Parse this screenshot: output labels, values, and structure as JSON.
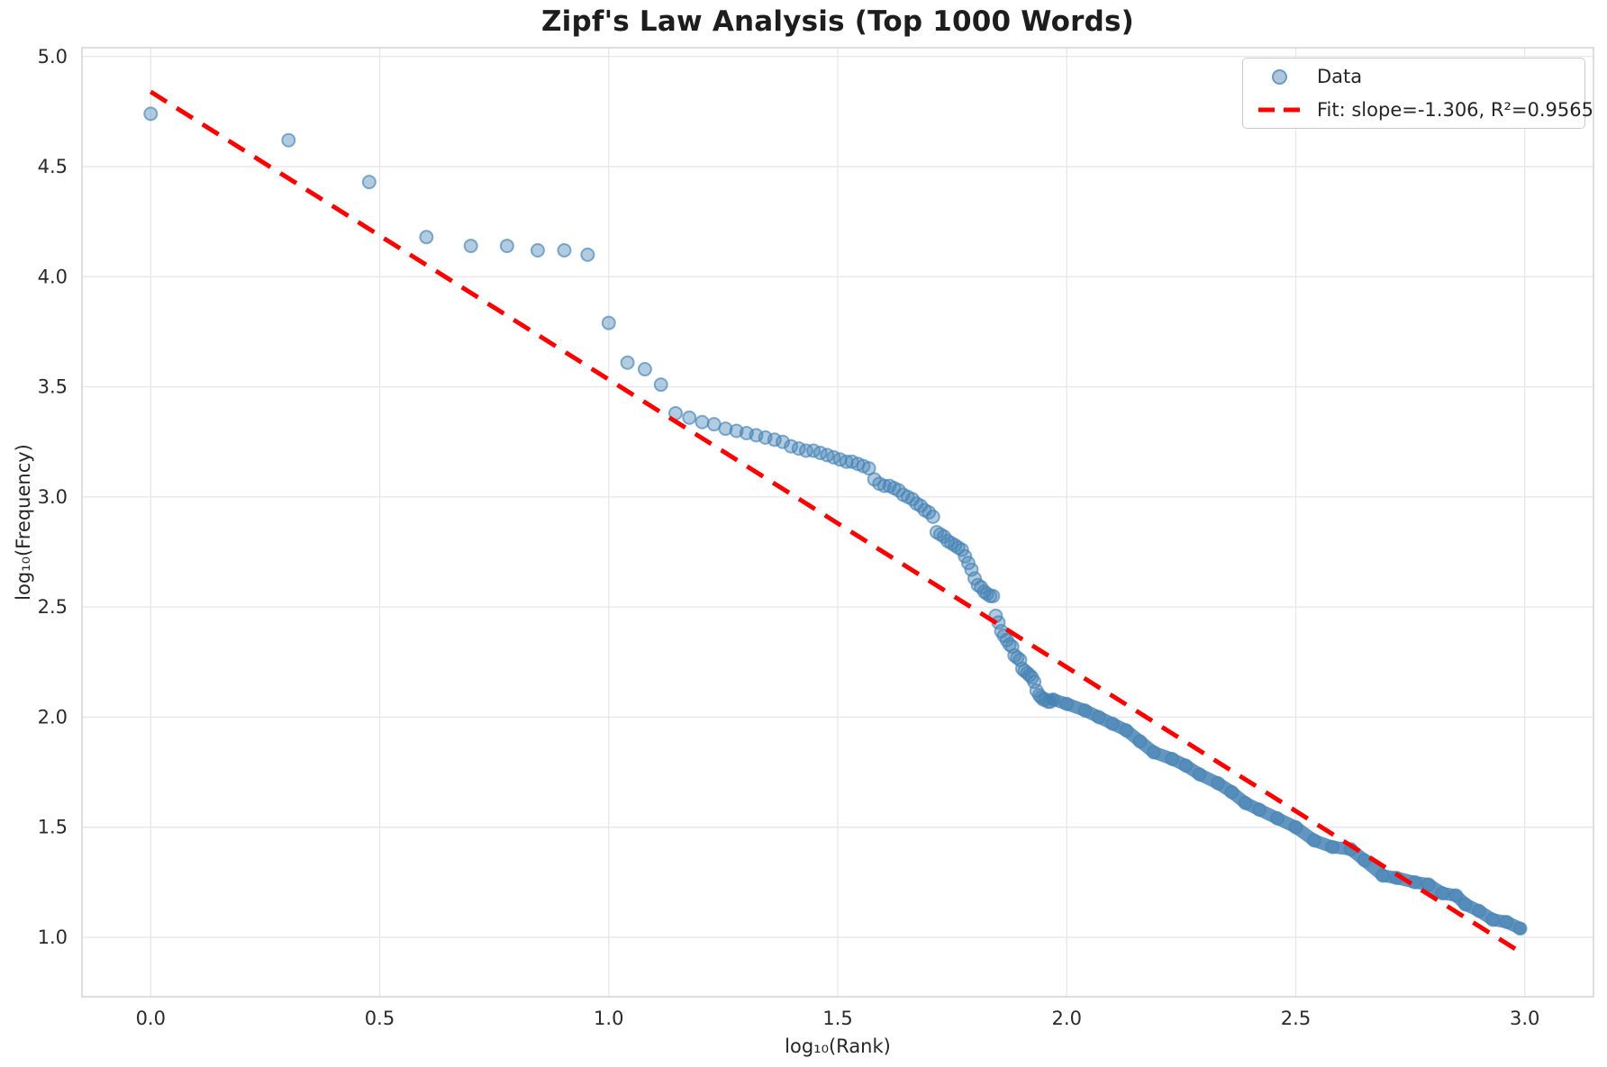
{
  "chart_data": {
    "type": "scatter",
    "title": "Zipf's Law Analysis (Top 1000 Words)",
    "xlabel": "log₁₀(Rank)",
    "ylabel": "log₁₀(Frequency)",
    "xlim": [
      -0.15,
      3.15
    ],
    "ylim": [
      0.73,
      5.04
    ],
    "xticks": [
      0.0,
      0.5,
      1.0,
      1.5,
      2.0,
      2.5,
      3.0
    ],
    "xtick_labels": [
      "0.0",
      "0.5",
      "1.0",
      "1.5",
      "2.0",
      "2.5",
      "3.0"
    ],
    "yticks": [
      1.0,
      1.5,
      2.0,
      2.5,
      3.0,
      3.5,
      4.0,
      4.5,
      5.0
    ],
    "ytick_labels": [
      "1.0",
      "1.5",
      "2.0",
      "2.5",
      "3.0",
      "3.5",
      "4.0",
      "4.5",
      "5.0"
    ],
    "grid": true,
    "background": "#ffffff",
    "grid_color": "#e7e7e7",
    "spine_color": "#cdcdcd",
    "text_color": "#2b2b2b",
    "legend_position": "upper right",
    "note": "Scatter of top 1000 ranked words; for log10(rank)>1.97 the points overlap into a dense band, recorded here as sampled band anchors.",
    "series": [
      {
        "name": "Data",
        "type": "scatter",
        "color": "#4682b4",
        "alpha": 0.5,
        "marker_radius_px": 7,
        "points": [
          [
            0.0,
            4.74
          ],
          [
            0.301,
            4.62
          ],
          [
            0.477,
            4.43
          ],
          [
            0.602,
            4.18
          ],
          [
            0.699,
            4.14
          ],
          [
            0.778,
            4.14
          ],
          [
            0.845,
            4.12
          ],
          [
            0.903,
            4.12
          ],
          [
            0.954,
            4.1
          ],
          [
            1.0,
            3.79
          ],
          [
            1.041,
            3.61
          ],
          [
            1.079,
            3.58
          ],
          [
            1.114,
            3.51
          ],
          [
            1.146,
            3.38
          ],
          [
            1.176,
            3.36
          ],
          [
            1.204,
            3.34
          ],
          [
            1.23,
            3.33
          ],
          [
            1.255,
            3.31
          ],
          [
            1.279,
            3.3
          ],
          [
            1.301,
            3.29
          ],
          [
            1.322,
            3.28
          ],
          [
            1.342,
            3.27
          ],
          [
            1.362,
            3.26
          ],
          [
            1.38,
            3.25
          ],
          [
            1.398,
            3.23
          ],
          [
            1.415,
            3.22
          ],
          [
            1.431,
            3.21
          ],
          [
            1.447,
            3.21
          ],
          [
            1.462,
            3.2
          ],
          [
            1.477,
            3.19
          ],
          [
            1.491,
            3.18
          ],
          [
            1.505,
            3.17
          ],
          [
            1.519,
            3.16
          ],
          [
            1.531,
            3.16
          ],
          [
            1.544,
            3.15
          ],
          [
            1.556,
            3.14
          ],
          [
            1.568,
            3.13
          ],
          [
            1.58,
            3.08
          ],
          [
            1.591,
            3.06
          ],
          [
            1.602,
            3.05
          ],
          [
            1.613,
            3.05
          ],
          [
            1.623,
            3.04
          ],
          [
            1.633,
            3.03
          ],
          [
            1.643,
            3.01
          ],
          [
            1.653,
            3.0
          ],
          [
            1.663,
            2.99
          ],
          [
            1.672,
            2.97
          ],
          [
            1.681,
            2.96
          ],
          [
            1.69,
            2.94
          ],
          [
            1.699,
            2.93
          ],
          [
            1.708,
            2.91
          ],
          [
            1.716,
            2.84
          ],
          [
            1.724,
            2.83
          ],
          [
            1.732,
            2.82
          ],
          [
            1.74,
            2.8
          ],
          [
            1.748,
            2.79
          ],
          [
            1.756,
            2.78
          ],
          [
            1.763,
            2.77
          ],
          [
            1.771,
            2.76
          ],
          [
            1.778,
            2.73
          ],
          [
            1.785,
            2.7
          ],
          [
            1.792,
            2.67
          ],
          [
            1.799,
            2.63
          ],
          [
            1.806,
            2.6
          ],
          [
            1.813,
            2.59
          ],
          [
            1.82,
            2.57
          ],
          [
            1.826,
            2.56
          ],
          [
            1.833,
            2.55
          ],
          [
            1.839,
            2.55
          ],
          [
            1.845,
            2.46
          ],
          [
            1.851,
            2.43
          ],
          [
            1.857,
            2.39
          ],
          [
            1.863,
            2.37
          ],
          [
            1.869,
            2.35
          ],
          [
            1.875,
            2.33
          ],
          [
            1.881,
            2.32
          ],
          [
            1.886,
            2.28
          ],
          [
            1.892,
            2.27
          ],
          [
            1.898,
            2.26
          ],
          [
            1.903,
            2.22
          ],
          [
            1.908,
            2.21
          ],
          [
            1.914,
            2.2
          ],
          [
            1.919,
            2.19
          ],
          [
            1.924,
            2.18
          ],
          [
            1.929,
            2.16
          ],
          [
            1.934,
            2.12
          ],
          [
            1.94,
            2.1
          ],
          [
            1.944,
            2.09
          ],
          [
            1.949,
            2.08
          ],
          [
            1.954,
            2.08
          ],
          [
            1.959,
            2.07
          ],
          [
            1.964,
            2.07
          ]
        ],
        "dense_tail_points": [
          [
            1.97,
            2.08
          ],
          [
            2.0,
            2.06
          ],
          [
            2.04,
            2.03
          ],
          [
            2.07,
            2.0
          ],
          [
            2.1,
            1.97
          ],
          [
            2.13,
            1.94
          ],
          [
            2.16,
            1.89
          ],
          [
            2.19,
            1.84
          ],
          [
            2.23,
            1.81
          ],
          [
            2.26,
            1.78
          ],
          [
            2.29,
            1.74
          ],
          [
            2.33,
            1.7
          ],
          [
            2.36,
            1.66
          ],
          [
            2.39,
            1.61
          ],
          [
            2.42,
            1.58
          ],
          [
            2.46,
            1.54
          ],
          [
            2.5,
            1.5
          ],
          [
            2.54,
            1.44
          ],
          [
            2.58,
            1.41
          ],
          [
            2.62,
            1.4
          ],
          [
            2.65,
            1.35
          ],
          [
            2.69,
            1.28
          ],
          [
            2.72,
            1.27
          ],
          [
            2.76,
            1.25
          ],
          [
            2.79,
            1.24
          ],
          [
            2.82,
            1.2
          ],
          [
            2.85,
            1.19
          ],
          [
            2.87,
            1.15
          ],
          [
            2.9,
            1.12
          ],
          [
            2.93,
            1.08
          ],
          [
            2.96,
            1.07
          ],
          [
            2.99,
            1.04
          ]
        ]
      },
      {
        "name": "Fit: slope=-1.306, R²=0.9565",
        "type": "line",
        "style": "dashed",
        "color": "#ff0000",
        "slope": -1.306,
        "intercept": 4.84,
        "r_squared": 0.9565,
        "points": [
          [
            0.0,
            4.84
          ],
          [
            3.0,
            0.92
          ]
        ]
      }
    ]
  }
}
